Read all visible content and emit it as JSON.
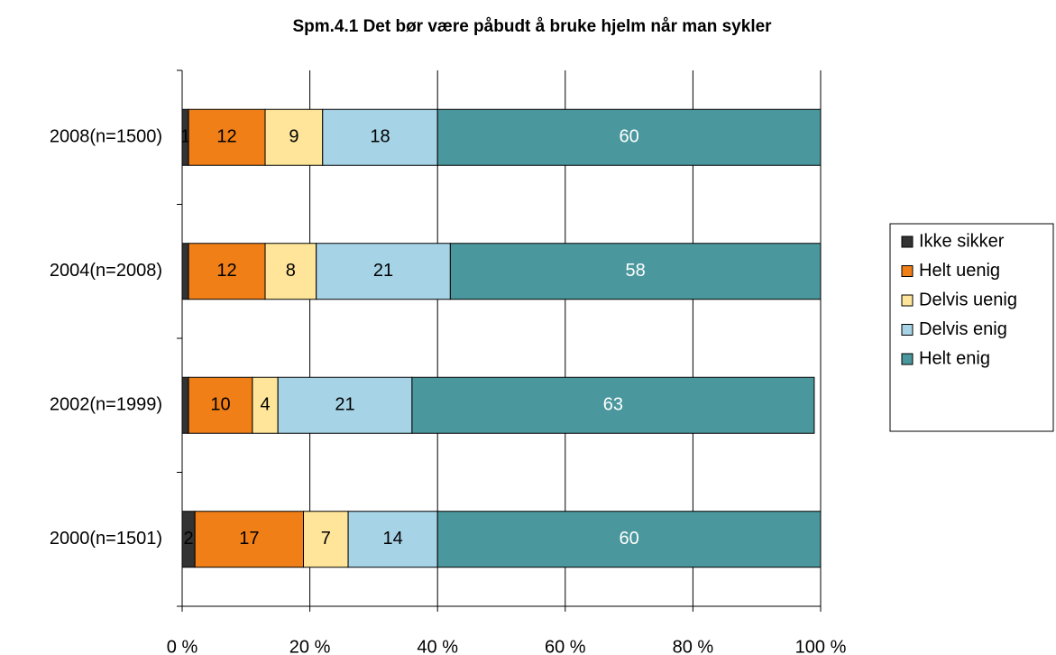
{
  "chart_data": {
    "type": "stacked_bar_horizontal",
    "title": "Spm.4.1 Det bør være påbudt å bruke hjelm når man sykler",
    "categories": [
      "2008(n=1500)",
      "2004(n=2008)",
      "2002(n=1999)",
      "2000(n=1501)"
    ],
    "series": [
      {
        "name": "Ikke sikker",
        "color": "#333333",
        "values": [
          1,
          1,
          1,
          2
        ],
        "value_labels": [
          "1",
          null,
          null,
          "2"
        ]
      },
      {
        "name": "Helt uenig",
        "color": "#f07f17",
        "values": [
          12,
          12,
          10,
          17
        ]
      },
      {
        "name": "Delvis uenig",
        "color": "#ffe599",
        "values": [
          9,
          8,
          4,
          7
        ]
      },
      {
        "name": "Delvis enig",
        "color": "#a6d3e6",
        "values": [
          18,
          21,
          21,
          14
        ]
      },
      {
        "name": "Helt enig",
        "color": "#4a979d",
        "values": [
          60,
          58,
          63,
          60
        ]
      }
    ],
    "xlim": [
      0,
      100
    ],
    "xticks": [
      {
        "value": 0,
        "label": "0 %"
      },
      {
        "value": 20,
        "label": "20 %"
      },
      {
        "value": 40,
        "label": "40 %"
      },
      {
        "value": 60,
        "label": "60 %"
      },
      {
        "value": 80,
        "label": "80 %"
      },
      {
        "value": 100,
        "label": "100 %"
      }
    ],
    "grid": true,
    "legend": "right"
  }
}
